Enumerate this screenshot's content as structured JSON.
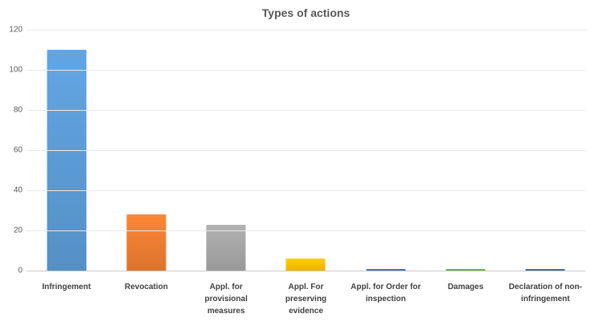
{
  "chart_data": {
    "type": "bar",
    "title": "Types of actions",
    "categories": [
      "Infringement",
      "Revocation",
      "Appl. for provisional measures",
      "Appl. For preserving evidence",
      "Appl. for Order for inspection",
      "Damages",
      "Declaration of non-infringement"
    ],
    "values": [
      110,
      28,
      23,
      6,
      1,
      1,
      1
    ],
    "colors": [
      "#5B9BD5",
      "#ED7D31",
      "#A5A5A5",
      "#FFC000",
      "#4472C4",
      "#70AD47",
      "#41719C"
    ],
    "xlabel": "",
    "ylabel": "",
    "ylim": [
      0,
      120
    ],
    "yticks": [
      0,
      20,
      40,
      60,
      80,
      100,
      120
    ],
    "grid": true,
    "legend": false,
    "title_color": "#595959",
    "tick_label_color": "#595959",
    "category_label_color": "#404040",
    "gridline_color": "#e8e8e8",
    "axis_line_color": "#c9c9c9"
  }
}
